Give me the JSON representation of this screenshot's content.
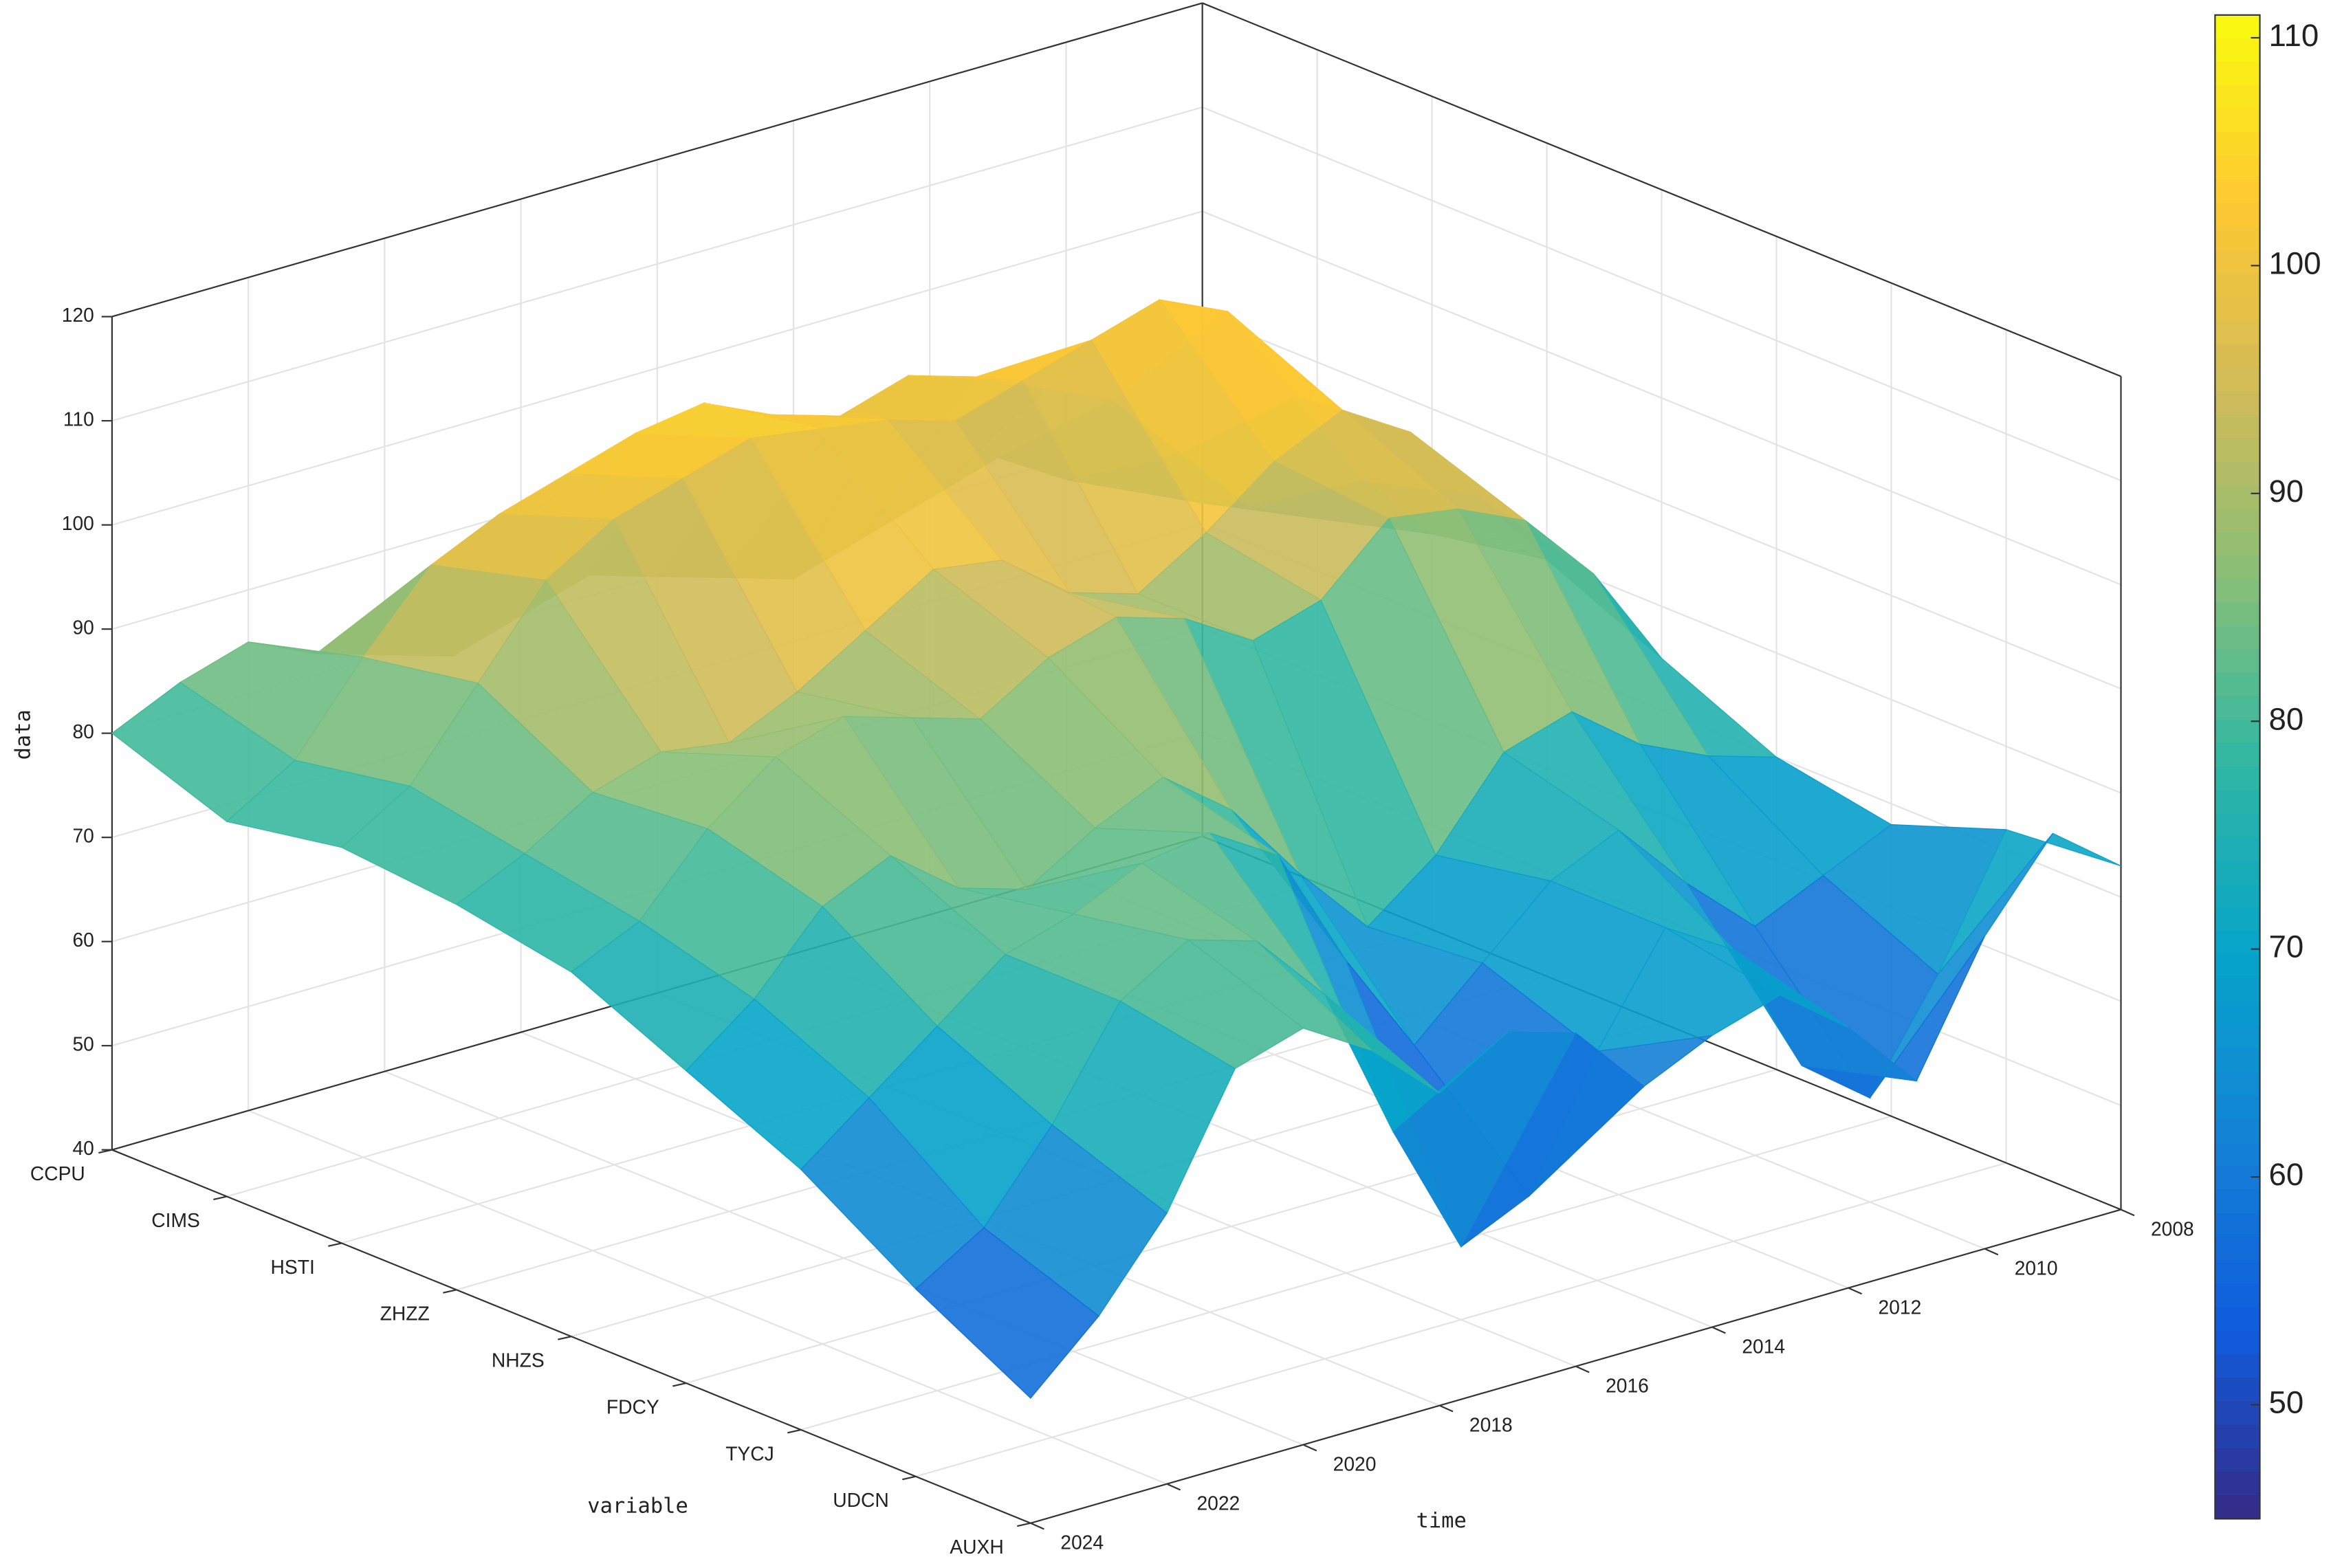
{
  "chart_data": {
    "type": "surface",
    "xlabel": "time",
    "ylabel": "variable",
    "zlabel": "data",
    "categories": [
      "CCPU",
      "CIMS",
      "HSTI",
      "ZHZZ",
      "NHZS",
      "FDCY",
      "TYCJ",
      "UDCN",
      "AUXH"
    ],
    "x": [
      2008,
      2009,
      2010,
      2011,
      2012,
      2013,
      2014,
      2015,
      2016,
      2017,
      2018,
      2019,
      2020,
      2021,
      2022,
      2023,
      2024
    ],
    "values": [
      [
        72,
        75,
        78,
        82,
        80,
        78,
        76,
        78,
        80,
        82,
        80,
        78,
        80,
        82,
        85,
        83,
        80
      ],
      [
        75,
        78,
        85,
        92,
        95,
        98,
        100,
        98,
        100,
        103,
        102,
        100,
        98,
        95,
        88,
        80,
        76
      ],
      [
        78,
        85,
        95,
        105,
        108,
        106,
        104,
        102,
        104,
        105,
        106,
        104,
        102,
        98,
        90,
        82,
        78
      ],
      [
        80,
        88,
        96,
        100,
        97,
        92,
        88,
        90,
        95,
        96,
        92,
        88,
        85,
        86,
        84,
        80,
        77
      ],
      [
        75,
        85,
        92,
        95,
        96,
        90,
        88,
        92,
        94,
        92,
        88,
        90,
        92,
        90,
        85,
        78,
        75
      ],
      [
        70,
        72,
        75,
        80,
        78,
        70,
        65,
        72,
        80,
        85,
        82,
        78,
        80,
        85,
        82,
        75,
        70
      ],
      [
        68,
        65,
        62,
        68,
        75,
        72,
        66,
        60,
        70,
        82,
        86,
        85,
        82,
        80,
        75,
        70,
        65
      ],
      [
        72,
        60,
        50,
        55,
        68,
        72,
        62,
        50,
        47,
        60,
        75,
        82,
        84,
        80,
        70,
        62,
        58
      ],
      [
        73,
        78,
        70,
        58,
        65,
        70,
        68,
        65,
        72,
        74,
        70,
        76,
        80,
        78,
        66,
        58,
        52
      ]
    ],
    "xlim": [
      2008,
      2024
    ],
    "xticks": [
      2008,
      2010,
      2012,
      2014,
      2016,
      2018,
      2020,
      2022,
      2024
    ],
    "zlim": [
      40,
      120
    ],
    "zticks": [
      40,
      50,
      60,
      70,
      80,
      90,
      100,
      110,
      120
    ],
    "grid": true,
    "colorbar": {
      "lim": [
        45,
        111
      ],
      "ticks": [
        50,
        60,
        70,
        80,
        90,
        100,
        110
      ]
    }
  }
}
